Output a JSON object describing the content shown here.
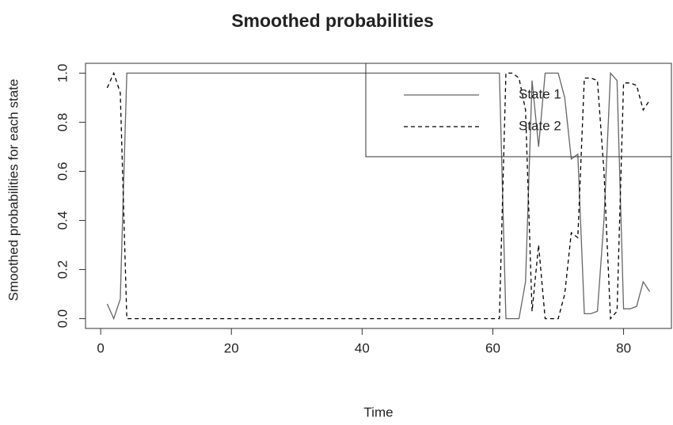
{
  "chart_data": {
    "type": "line",
    "title": "Smoothed probabilities",
    "x_label": "Time",
    "y_label": "Smoothed probabilities for each state",
    "x": [
      1,
      2,
      3,
      4,
      5,
      6,
      7,
      8,
      9,
      10,
      11,
      12,
      13,
      14,
      15,
      16,
      17,
      18,
      19,
      20,
      21,
      22,
      23,
      24,
      25,
      26,
      27,
      28,
      29,
      30,
      31,
      32,
      33,
      34,
      35,
      36,
      37,
      38,
      39,
      40,
      41,
      42,
      43,
      44,
      45,
      46,
      47,
      48,
      49,
      50,
      51,
      52,
      53,
      54,
      55,
      56,
      57,
      58,
      59,
      60,
      61,
      62,
      63,
      64,
      65,
      66,
      67,
      68,
      69,
      70,
      71,
      72,
      73,
      74,
      75,
      76,
      77,
      78,
      79,
      80,
      81,
      82,
      83,
      84
    ],
    "series": [
      {
        "name": "State 1",
        "color": "#666666",
        "dash": "solid",
        "values": [
          0.06,
          0,
          0.08,
          1,
          1,
          1,
          1,
          1,
          1,
          1,
          1,
          1,
          1,
          1,
          1,
          1,
          1,
          1,
          1,
          1,
          1,
          1,
          1,
          1,
          1,
          1,
          1,
          1,
          1,
          1,
          1,
          1,
          1,
          1,
          1,
          1,
          1,
          1,
          1,
          1,
          1,
          1,
          1,
          1,
          1,
          1,
          1,
          1,
          1,
          1,
          1,
          1,
          1,
          1,
          1,
          1,
          1,
          1,
          1,
          1,
          1,
          0,
          0,
          0,
          0.15,
          0.97,
          0.7,
          1,
          1,
          1,
          0.9,
          0.65,
          0.67,
          0.02,
          0.02,
          0.03,
          0.4,
          1,
          0.97,
          0.04,
          0.04,
          0.05,
          0.15,
          0.11
        ]
      },
      {
        "name": "State 2",
        "color": "#000000",
        "dash": "dashed",
        "values": [
          0.94,
          1,
          0.92,
          0,
          0,
          0,
          0,
          0,
          0,
          0,
          0,
          0,
          0,
          0,
          0,
          0,
          0,
          0,
          0,
          0,
          0,
          0,
          0,
          0,
          0,
          0,
          0,
          0,
          0,
          0,
          0,
          0,
          0,
          0,
          0,
          0,
          0,
          0,
          0,
          0,
          0,
          0,
          0,
          0,
          0,
          0,
          0,
          0,
          0,
          0,
          0,
          0,
          0,
          0,
          0,
          0,
          0,
          0,
          0,
          0,
          0,
          1,
          1,
          0.98,
          0.85,
          0.03,
          0.3,
          0,
          0,
          0,
          0.1,
          0.35,
          0.33,
          0.98,
          0.98,
          0.97,
          0.6,
          0,
          0.03,
          0.96,
          0.96,
          0.95,
          0.85,
          0.89
        ]
      }
    ],
    "xlim": [
      -2.32,
      87.32
    ],
    "ylim": [
      -0.04,
      1.04
    ],
    "xticks": [
      0,
      20,
      40,
      60,
      80
    ],
    "yticks": [
      {
        "value": 0,
        "label": "0.0"
      },
      0.2,
      0.4,
      0.6,
      0.8,
      {
        "value": 1,
        "label": "1.0"
      }
    ],
    "legend": "topright"
  }
}
